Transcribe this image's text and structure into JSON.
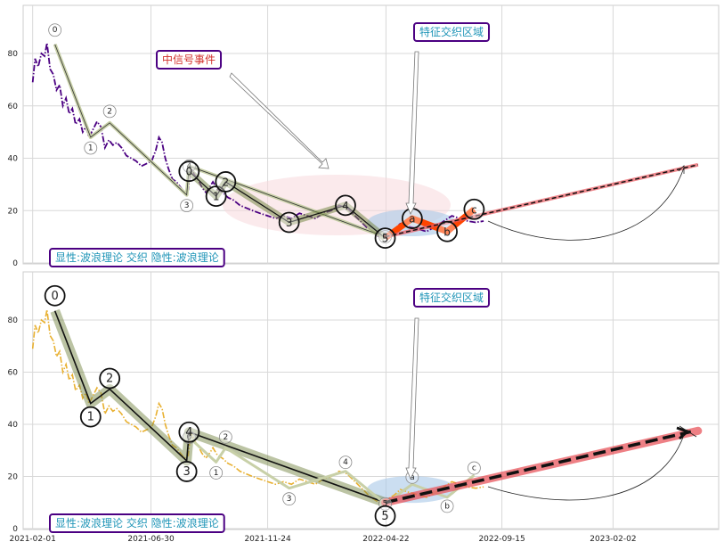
{
  "chart_data": [
    {
      "type": "line",
      "panel": "top",
      "ylim": [
        0,
        98
      ],
      "yticks": [
        0,
        20,
        40,
        60,
        80
      ],
      "grid": true,
      "series": [],
      "price_line": [
        [
          "2021-02-01",
          69
        ],
        [
          "2021-02-04",
          78
        ],
        [
          "2021-02-08",
          75
        ],
        [
          "2021-02-12",
          80
        ],
        [
          "2021-02-16",
          79
        ],
        [
          "2021-02-19",
          84
        ],
        [
          "2021-02-23",
          74
        ],
        [
          "2021-02-27",
          72
        ],
        [
          "2021-03-03",
          66
        ],
        [
          "2021-03-07",
          68
        ],
        [
          "2021-03-11",
          60
        ],
        [
          "2021-03-15",
          63
        ],
        [
          "2021-03-19",
          57
        ],
        [
          "2021-03-23",
          59
        ],
        [
          "2021-03-27",
          53
        ],
        [
          "2021-04-01",
          55
        ],
        [
          "2021-04-05",
          50
        ],
        [
          "2021-04-09",
          52
        ],
        [
          "2021-04-13",
          48
        ],
        [
          "2021-04-18",
          51
        ],
        [
          "2021-04-23",
          54
        ],
        [
          "2021-04-28",
          52
        ],
        [
          "2021-05-03",
          44
        ],
        [
          "2021-05-08",
          47
        ],
        [
          "2021-05-13",
          45
        ],
        [
          "2021-05-18",
          46
        ],
        [
          "2021-05-24",
          44
        ],
        [
          "2021-05-30",
          41
        ],
        [
          "2021-06-05",
          40
        ],
        [
          "2021-06-11",
          39
        ],
        [
          "2021-06-18",
          37
        ],
        [
          "2021-06-25",
          38
        ],
        [
          "2021-07-01",
          39
        ],
        [
          "2021-07-06",
          43
        ],
        [
          "2021-07-10",
          48
        ],
        [
          "2021-07-14",
          46
        ],
        [
          "2021-07-18",
          40
        ],
        [
          "2021-07-22",
          36
        ],
        [
          "2021-07-27",
          32
        ],
        [
          "2021-08-01",
          31
        ],
        [
          "2021-08-06",
          29
        ],
        [
          "2021-08-11",
          27
        ],
        [
          "2021-08-16",
          28
        ],
        [
          "2021-08-19",
          37
        ],
        [
          "2021-08-23",
          34
        ],
        [
          "2021-08-28",
          32
        ],
        [
          "2021-09-02",
          29
        ],
        [
          "2021-09-07",
          27
        ],
        [
          "2021-09-12",
          29
        ],
        [
          "2021-09-16",
          31
        ],
        [
          "2021-09-22",
          28
        ],
        [
          "2021-09-28",
          27
        ],
        [
          "2021-10-05",
          25
        ],
        [
          "2021-10-12",
          24
        ],
        [
          "2021-10-20",
          22
        ],
        [
          "2021-10-28",
          21
        ],
        [
          "2021-11-05",
          20
        ],
        [
          "2021-11-14",
          19
        ],
        [
          "2021-11-24",
          18
        ],
        [
          "2021-12-04",
          17
        ],
        [
          "2021-12-14",
          18
        ],
        [
          "2021-12-24",
          17
        ],
        [
          "2022-01-03",
          19
        ],
        [
          "2022-01-13",
          18
        ],
        [
          "2022-01-23",
          17
        ],
        [
          "2022-02-02",
          19
        ],
        [
          "2022-02-12",
          20
        ],
        [
          "2022-02-22",
          22
        ],
        [
          "2022-03-04",
          21
        ],
        [
          "2022-03-14",
          18
        ],
        [
          "2022-03-24",
          15
        ],
        [
          "2022-04-03",
          12
        ],
        [
          "2022-04-13",
          10
        ],
        [
          "2022-04-23",
          11
        ],
        [
          "2022-05-03",
          13
        ],
        [
          "2022-05-10",
          15
        ],
        [
          "2022-05-20",
          14
        ],
        [
          "2022-06-01",
          13
        ],
        [
          "2022-06-12",
          12
        ],
        [
          "2022-06-24",
          14
        ],
        [
          "2022-07-04",
          16
        ],
        [
          "2022-07-14",
          18
        ],
        [
          "2022-07-24",
          17
        ],
        [
          "2022-08-03",
          16
        ],
        [
          "2022-08-13",
          15.5
        ],
        [
          "2022-08-23",
          16
        ]
      ],
      "waves_large": [
        {
          "label": "0",
          "x": "2021-08-17",
          "y": 35
        },
        {
          "label": "1",
          "x": "2021-09-20",
          "y": 25.5
        },
        {
          "label": "2",
          "x": "2021-10-02",
          "y": 31
        },
        {
          "label": "3",
          "x": "2021-12-21",
          "y": 15.5
        },
        {
          "label": "4",
          "x": "2022-03-02",
          "y": 22
        },
        {
          "label": "5",
          "x": "2022-04-21",
          "y": 9.5
        },
        {
          "label": "a",
          "x": "2022-05-25",
          "y": 17
        },
        {
          "label": "b",
          "x": "2022-07-08",
          "y": 12
        },
        {
          "label": "c",
          "x": "2022-08-11",
          "y": 20.5
        }
      ],
      "waves_small": [
        {
          "label": "0",
          "x": "2021-03-01",
          "y": 83.5
        },
        {
          "label": "1",
          "x": "2021-04-15",
          "y": 48
        },
        {
          "label": "2",
          "x": "2021-05-09",
          "y": 53.5
        },
        {
          "label": "3",
          "x": "2021-08-14",
          "y": 26
        },
        {
          "label": "4",
          "x": "2021-08-17",
          "y": 37
        },
        {
          "label": "5",
          "x": "2022-04-21",
          "y": 10
        }
      ],
      "projection": {
        "from": [
          "2022-04-21",
          10
        ],
        "to": [
          "2023-05-20",
          37.5
        ]
      },
      "annotations": {
        "event_label": "中信号事件",
        "zone_label": "特征交织区域",
        "footer_label": "显性:波浪理论 交织 隐性:波浪理论"
      }
    },
    {
      "type": "line",
      "panel": "bottom",
      "ylim": [
        0,
        98
      ],
      "yticks": [
        0,
        20,
        40,
        60,
        80
      ],
      "xticks": [
        "2021-02-01",
        "2021-06-30",
        "2021-11-24",
        "2022-04-22",
        "2022-09-15",
        "2023-02-02"
      ],
      "grid": true,
      "series": [],
      "waves_large": [
        {
          "label": "0",
          "x": "2021-03-01",
          "y": 83.5
        },
        {
          "label": "1",
          "x": "2021-04-15",
          "y": 48
        },
        {
          "label": "2",
          "x": "2021-05-09",
          "y": 53.5
        },
        {
          "label": "3",
          "x": "2021-08-14",
          "y": 26
        },
        {
          "label": "4",
          "x": "2021-08-17",
          "y": 37
        },
        {
          "label": "5",
          "x": "2022-04-21",
          "y": 10
        }
      ],
      "waves_small": [
        {
          "label": "0",
          "x": "2021-08-17",
          "y": 35
        },
        {
          "label": "1",
          "x": "2021-09-20",
          "y": 25.5
        },
        {
          "label": "2",
          "x": "2021-10-02",
          "y": 31
        },
        {
          "label": "3",
          "x": "2021-12-21",
          "y": 15.5
        },
        {
          "label": "4",
          "x": "2022-03-02",
          "y": 22
        },
        {
          "label": "5",
          "x": "2022-04-21",
          "y": 9.5
        },
        {
          "label": "a",
          "x": "2022-05-25",
          "y": 17
        },
        {
          "label": "b",
          "x": "2022-07-08",
          "y": 12
        },
        {
          "label": "c",
          "x": "2022-08-11",
          "y": 20.5
        }
      ],
      "projection": {
        "from": [
          "2022-04-21",
          10
        ],
        "to": [
          "2023-05-20",
          37.5
        ]
      },
      "annotations": {
        "zone_label": "特征交织区域",
        "footer_label": "显性:波浪理论 交织 隐性:波浪理论"
      }
    }
  ],
  "colors": {
    "top_price": "#4b0082",
    "bottom_price": "#e8b030",
    "wave_band": "#7a8a4a",
    "abc_band": "#ff4500",
    "projection_band": "#e8565c",
    "zone_fill": "#a8c8e8",
    "event_fill": "#f7d8dc",
    "box_border": "#4b0082",
    "event_text": "#d2302c",
    "zone_text": "#2196b8"
  }
}
